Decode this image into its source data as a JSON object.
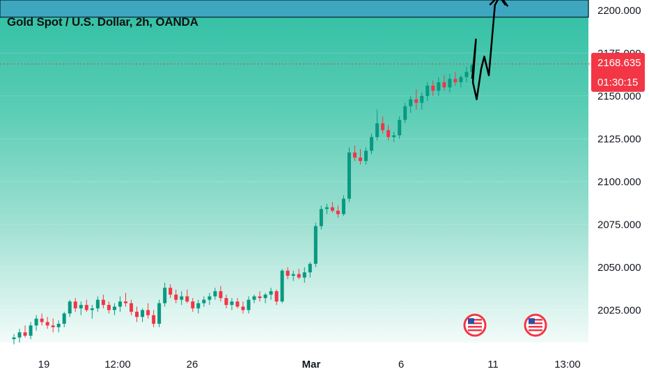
{
  "chart_data": {
    "type": "candlestick",
    "title": "Gold Spot / U.S. Dollar, 2h, OANDA",
    "symbol": "Gold Spot / U.S. Dollar",
    "interval": "2h",
    "source": "OANDA",
    "y_ticks": [
      "2200.000",
      "2175.000",
      "2150.000",
      "2125.000",
      "2100.000",
      "2075.000",
      "2050.000",
      "2025.000"
    ],
    "y_tick_values": [
      2200,
      2175,
      2150,
      2125,
      2100,
      2075,
      2050,
      2025
    ],
    "ylim": [
      2006,
      2206
    ],
    "x_ticks": [
      "19",
      "12:00",
      "26",
      "Mar",
      "6",
      "11",
      "13:00"
    ],
    "last_price": "2168.635",
    "last_price_value": 2168.635,
    "countdown": "01:30:15",
    "colors": {
      "up": "#089981",
      "down": "#f23645",
      "price_label": "#f23645",
      "target_zone": "#3fa6c0",
      "projection": "#000000",
      "price_line": "#f23645"
    },
    "candles": [
      [
        2008,
        2011,
        2005,
        2009
      ],
      [
        2009,
        2014,
        2006,
        2012
      ],
      [
        2012,
        2016,
        2009,
        2010
      ],
      [
        2010,
        2018,
        2008,
        2016
      ],
      [
        2016,
        2022,
        2013,
        2020
      ],
      [
        2020,
        2023,
        2016,
        2018
      ],
      [
        2018,
        2021,
        2014,
        2016
      ],
      [
        2016,
        2020,
        2012,
        2015
      ],
      [
        2015,
        2019,
        2012,
        2017
      ],
      [
        2017,
        2024,
        2015,
        2023
      ],
      [
        2023,
        2031,
        2021,
        2030
      ],
      [
        2030,
        2032,
        2024,
        2026
      ],
      [
        2026,
        2030,
        2022,
        2028
      ],
      [
        2028,
        2031,
        2024,
        2025
      ],
      [
        2025,
        2028,
        2020,
        2026
      ],
      [
        2026,
        2033,
        2024,
        2031
      ],
      [
        2031,
        2034,
        2026,
        2028
      ],
      [
        2028,
        2030,
        2023,
        2025
      ],
      [
        2025,
        2029,
        2022,
        2027
      ],
      [
        2027,
        2033,
        2024,
        2030
      ],
      [
        2030,
        2035,
        2027,
        2029
      ],
      [
        2029,
        2031,
        2022,
        2024
      ],
      [
        2024,
        2027,
        2018,
        2021
      ],
      [
        2021,
        2026,
        2018,
        2025
      ],
      [
        2025,
        2029,
        2020,
        2022
      ],
      [
        2022,
        2025,
        2015,
        2017
      ],
      [
        2017,
        2031,
        2015,
        2029
      ],
      [
        2029,
        2041,
        2027,
        2038
      ],
      [
        2038,
        2040,
        2032,
        2034
      ],
      [
        2034,
        2037,
        2029,
        2031
      ],
      [
        2031,
        2036,
        2028,
        2033
      ],
      [
        2033,
        2037,
        2029,
        2030
      ],
      [
        2030,
        2032,
        2024,
        2026
      ],
      [
        2026,
        2031,
        2023,
        2029
      ],
      [
        2029,
        2033,
        2027,
        2031
      ],
      [
        2031,
        2035,
        2028,
        2033
      ],
      [
        2033,
        2038,
        2031,
        2036
      ],
      [
        2036,
        2039,
        2030,
        2032
      ],
      [
        2032,
        2034,
        2026,
        2028
      ],
      [
        2028,
        2032,
        2025,
        2030
      ],
      [
        2030,
        2032,
        2026,
        2027
      ],
      [
        2027,
        2030,
        2023,
        2025
      ],
      [
        2025,
        2033,
        2023,
        2031
      ],
      [
        2031,
        2034,
        2029,
        2033
      ],
      [
        2033,
        2036,
        2030,
        2032
      ],
      [
        2032,
        2035,
        2029,
        2034
      ],
      [
        2034,
        2038,
        2031,
        2036
      ],
      [
        2036,
        2037,
        2028,
        2030
      ],
      [
        2030,
        2049,
        2029,
        2048
      ],
      [
        2048,
        2050,
        2043,
        2045
      ],
      [
        2045,
        2048,
        2042,
        2046
      ],
      [
        2046,
        2049,
        2043,
        2044
      ],
      [
        2044,
        2050,
        2041,
        2047
      ],
      [
        2047,
        2053,
        2044,
        2052
      ],
      [
        2052,
        2076,
        2050,
        2074
      ],
      [
        2074,
        2086,
        2072,
        2084
      ],
      [
        2084,
        2087,
        2081,
        2085
      ],
      [
        2085,
        2088,
        2082,
        2083
      ],
      [
        2083,
        2086,
        2079,
        2081
      ],
      [
        2081,
        2092,
        2080,
        2090
      ],
      [
        2090,
        2120,
        2088,
        2117
      ],
      [
        2117,
        2121,
        2112,
        2114
      ],
      [
        2114,
        2119,
        2110,
        2112
      ],
      [
        2112,
        2120,
        2110,
        2118
      ],
      [
        2118,
        2128,
        2116,
        2126
      ],
      [
        2126,
        2142,
        2124,
        2134
      ],
      [
        2134,
        2138,
        2128,
        2130
      ],
      [
        2130,
        2133,
        2124,
        2126
      ],
      [
        2126,
        2129,
        2123,
        2127
      ],
      [
        2127,
        2138,
        2125,
        2136
      ],
      [
        2136,
        2146,
        2134,
        2144
      ],
      [
        2144,
        2150,
        2140,
        2148
      ],
      [
        2148,
        2154,
        2142,
        2146
      ],
      [
        2146,
        2152,
        2142,
        2150
      ],
      [
        2150,
        2158,
        2147,
        2156
      ],
      [
        2156,
        2159,
        2150,
        2153
      ],
      [
        2153,
        2161,
        2150,
        2158
      ],
      [
        2158,
        2162,
        2153,
        2155
      ],
      [
        2155,
        2163,
        2152,
        2160
      ],
      [
        2160,
        2164,
        2156,
        2158
      ],
      [
        2158,
        2162,
        2155,
        2161
      ],
      [
        2161,
        2167,
        2158,
        2164
      ],
      [
        2164,
        2169,
        2160,
        2168
      ]
    ],
    "projection_path": [
      [
        2160,
        2170
      ],
      [
        2183,
        2175
      ],
      [
        2158,
        2171
      ],
      [
        2148,
        2176
      ],
      [
        2166,
        2182
      ],
      [
        2173,
        2186
      ],
      [
        2162,
        2192
      ],
      [
        2203,
        2200
      ],
      [
        2208,
        2206
      ],
      [
        2203,
        2214
      ]
    ],
    "target_zone_bottom": 2196,
    "event_icons": [
      "us-flag-icon",
      "us-flag-icon"
    ]
  }
}
